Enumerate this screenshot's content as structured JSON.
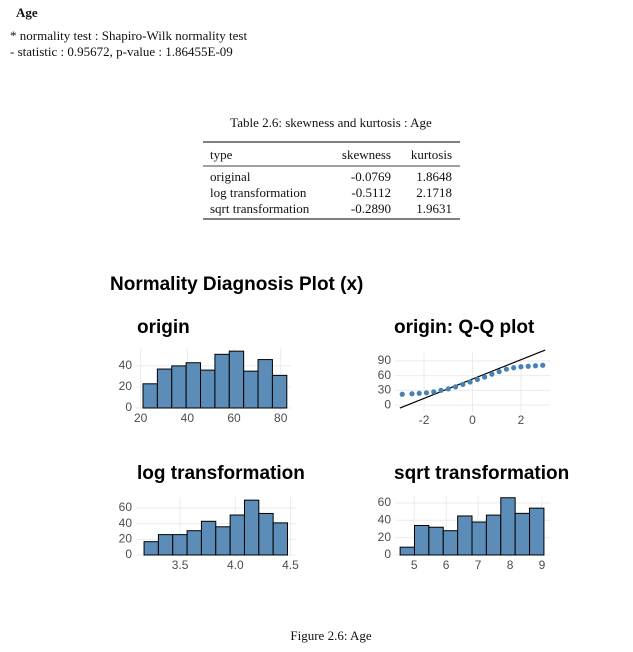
{
  "header": {
    "title": "Age"
  },
  "test": {
    "lines": [
      "* normality test : Shapiro-Wilk normality test",
      "- statistic : 0.95672, p-value : 1.86455E-09"
    ]
  },
  "table": {
    "caption": "Table 2.6: skewness and kurtosis : Age",
    "columns": [
      "type",
      "skewness",
      "kurtosis"
    ],
    "rows": [
      [
        "original",
        "-0.0769",
        "1.8648"
      ],
      [
        "log transformation",
        "-0.5112",
        "2.1718"
      ],
      [
        "sqrt transformation",
        "-0.2890",
        "1.9631"
      ]
    ]
  },
  "figure": {
    "title": "Normality Diagnosis Plot (x)",
    "caption": "Figure 2.6: Age"
  },
  "chart_data": [
    {
      "type": "histogram",
      "title": "origin",
      "color": "#5b8db8",
      "bins": [
        21,
        27.16,
        33.32,
        39.48,
        45.64,
        51.8,
        57.96,
        64.12,
        70.28,
        76.44,
        82.6
      ],
      "values": [
        23,
        37,
        40,
        43,
        36,
        51,
        54,
        35,
        46,
        31
      ],
      "xlim": [
        18,
        84.4
      ],
      "xticks": [
        20,
        40,
        60,
        80
      ],
      "ylim": [
        0,
        57
      ],
      "yticks": [
        0,
        20,
        40
      ],
      "grid": true
    },
    {
      "type": "scatter",
      "title": "origin: Q-Q plot",
      "color": "#4682b4",
      "x": [
        -2.9,
        -2.5,
        -2.2,
        -1.9,
        -1.6,
        -1.3,
        -1,
        -0.7,
        -0.4,
        -0.1,
        0.2,
        0.5,
        0.8,
        1.1,
        1.4,
        1.7,
        2,
        2.3,
        2.6,
        2.9
      ],
      "values": [
        22,
        23,
        24,
        25,
        27,
        30,
        33,
        37,
        42,
        47,
        52,
        57,
        63,
        68,
        73,
        76,
        78,
        79,
        80,
        81
      ],
      "ref_line": {
        "x": [
          -3,
          3
        ],
        "values": [
          -6,
          112
        ],
        "color": "#000000"
      },
      "xlim": [
        -3.2,
        3.2
      ],
      "xticks": [
        -2,
        0,
        2
      ],
      "ylim": [
        -10,
        108
      ],
      "yticks": [
        0,
        30,
        60,
        90
      ],
      "grid": true
    },
    {
      "type": "histogram",
      "title": "log transformation",
      "color": "#5b8db8",
      "bins": [
        3.173,
        3.303,
        3.433,
        3.563,
        3.693,
        3.823,
        3.953,
        4.083,
        4.213,
        4.343,
        4.473
      ],
      "values": [
        17,
        26,
        26,
        31,
        43,
        36,
        51,
        70,
        53,
        41
      ],
      "xlim": [
        3.1,
        4.55
      ],
      "xticks": [
        {
          "value": 3.5,
          "label": "3.5"
        },
        {
          "value": 4,
          "label": "4.0"
        },
        {
          "value": 4.5,
          "label": "4.5"
        }
      ],
      "ylim": [
        0,
        74
      ],
      "yticks": [
        0,
        20,
        40,
        60
      ],
      "grid": true
    },
    {
      "type": "histogram",
      "title": "sqrt transformation",
      "color": "#5b8db8",
      "bins": [
        4.56,
        5.01,
        5.46,
        5.91,
        6.36,
        6.81,
        7.26,
        7.71,
        8.16,
        8.61,
        9.06
      ],
      "values": [
        9,
        34,
        32,
        28,
        45,
        38,
        46,
        66,
        48,
        54
      ],
      "xlim": [
        4.4,
        9.25
      ],
      "xticks": [
        5,
        6,
        7,
        8,
        9
      ],
      "ylim": [
        0,
        68
      ],
      "yticks": [
        0,
        20,
        40,
        60
      ],
      "grid": true
    }
  ]
}
